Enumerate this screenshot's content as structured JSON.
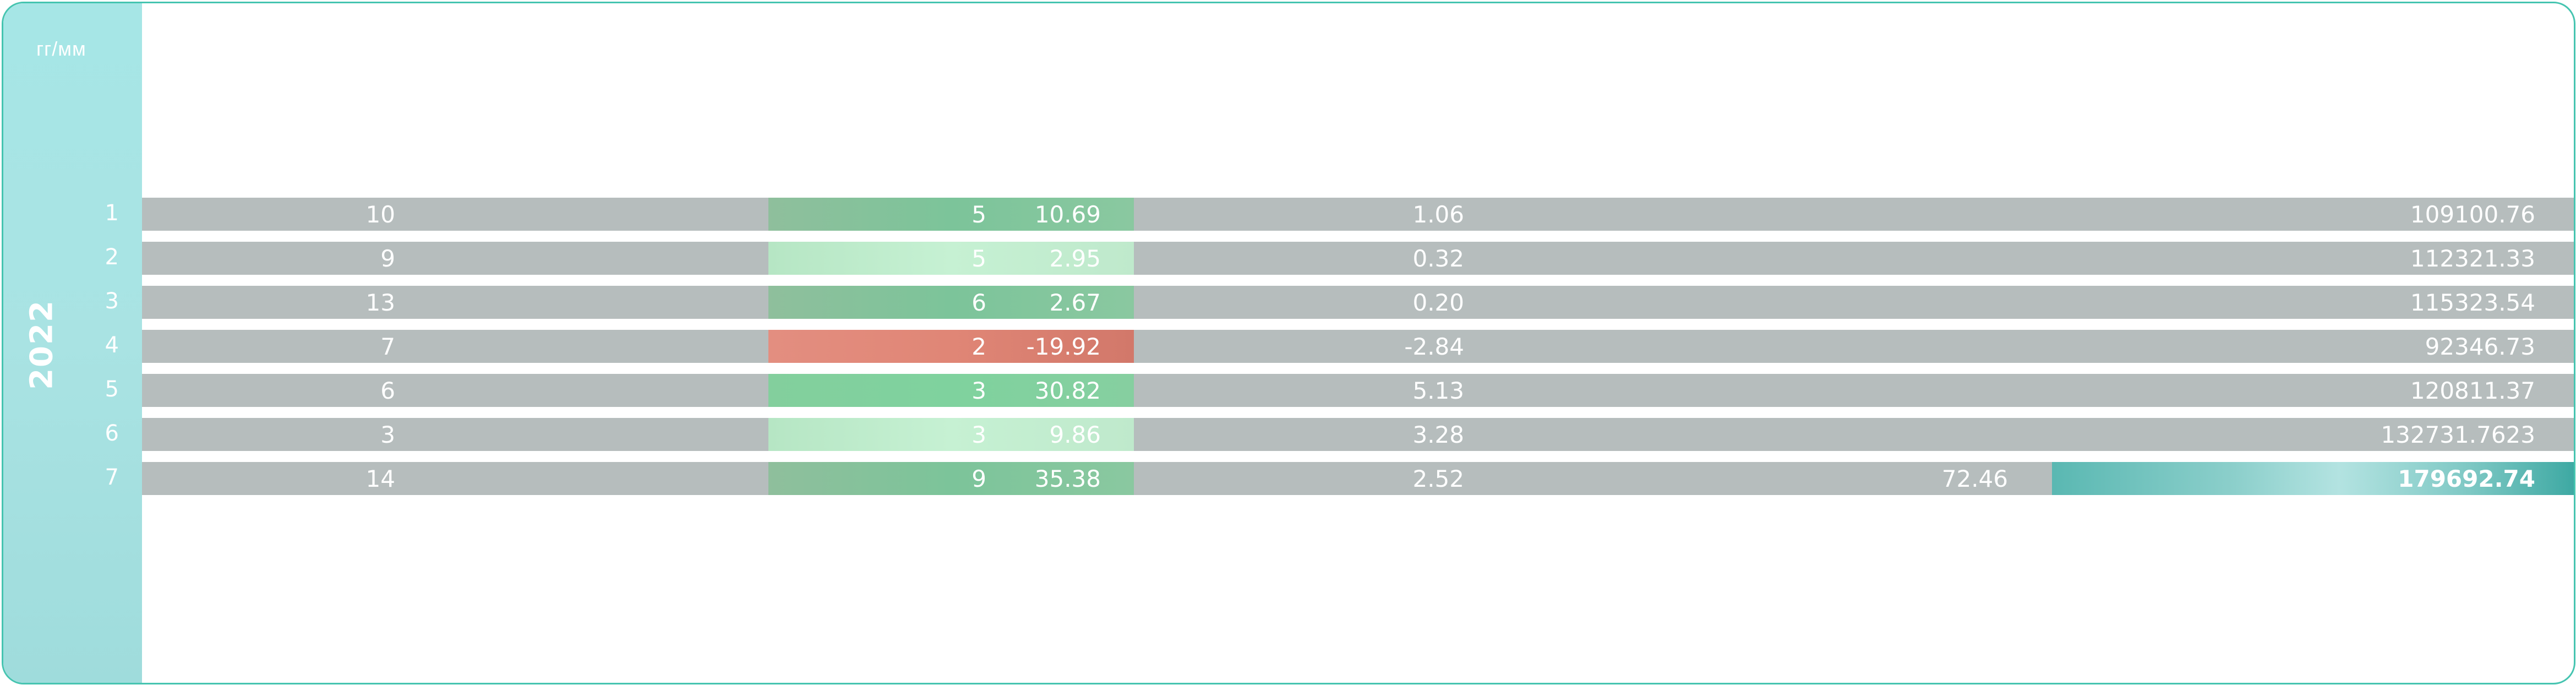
{
  "header": {
    "corner_label": "гг/мм",
    "year": "2022"
  },
  "colors": {
    "frame": "#45c4b0",
    "sidebar": "#a6e6e6",
    "row": "#b6bdbd",
    "positive": "#7cc49a",
    "negative": "#e08676",
    "highlight": "#5ab8b2"
  },
  "rows": [
    {
      "month": "1",
      "c1": "10",
      "c2": "5",
      "pct": "10.69",
      "pct_style": "pos",
      "c4": "1.06",
      "c5": "",
      "total": "109100.76"
    },
    {
      "month": "2",
      "c1": "9",
      "c2": "5",
      "pct": "2.95",
      "pct_style": "light",
      "c4": "0.32",
      "c5": "",
      "total": "112321.33"
    },
    {
      "month": "3",
      "c1": "13",
      "c2": "6",
      "pct": "2.67",
      "pct_style": "pos",
      "c4": "0.20",
      "c5": "",
      "total": "115323.54"
    },
    {
      "month": "4",
      "c1": "7",
      "c2": "2",
      "pct": "-19.92",
      "pct_style": "neg",
      "c4": "-2.84",
      "c5": "",
      "total": "92346.73"
    },
    {
      "month": "5",
      "c1": "6",
      "c2": "3",
      "pct": "30.82",
      "pct_style": "strong",
      "c4": "5.13",
      "c5": "",
      "total": "120811.37"
    },
    {
      "month": "6",
      "c1": "3",
      "c2": "3",
      "pct": "9.86",
      "pct_style": "light",
      "c4": "3.28",
      "c5": "",
      "total": "132731.7623"
    },
    {
      "month": "7",
      "c1": "14",
      "c2": "9",
      "pct": "35.38",
      "pct_style": "pos",
      "c4": "2.52",
      "c5": "72.46",
      "total": "179692.74"
    }
  ]
}
